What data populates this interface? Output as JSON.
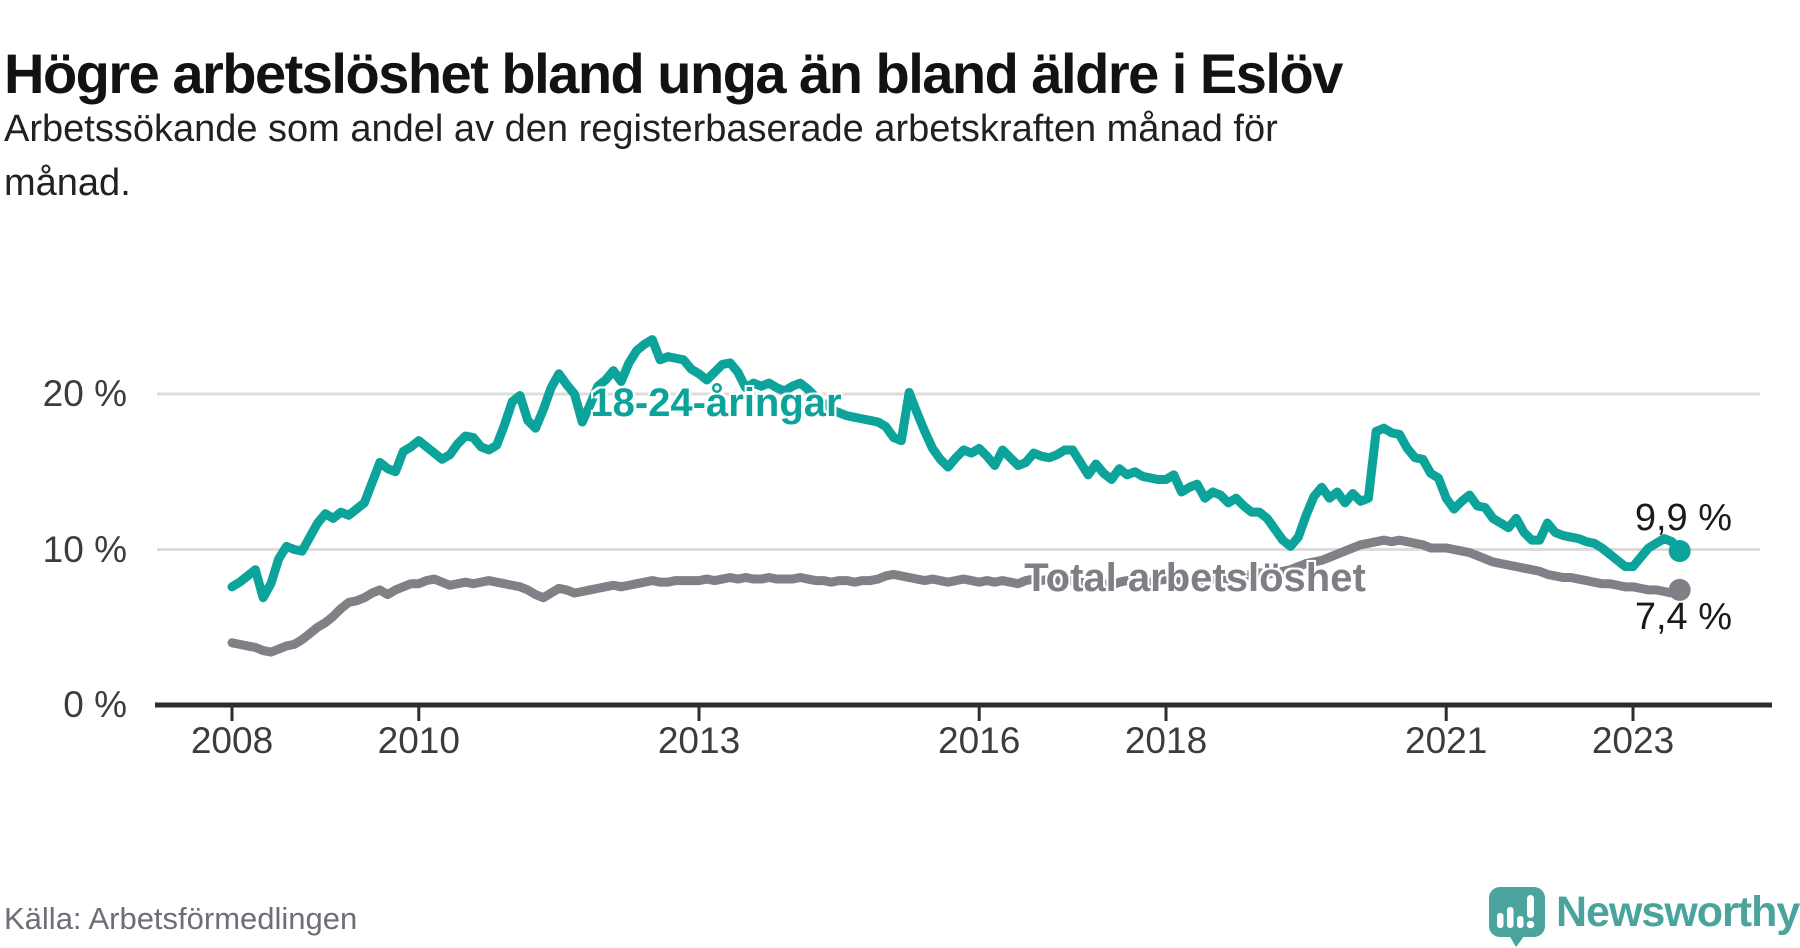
{
  "header": {
    "title": "Högre arbetslöshet bland unga än bland äldre i Eslöv",
    "subtitle_lines": [
      "Arbetssökande som andel av den registerbaserade arbetskraften månad för",
      "månad."
    ]
  },
  "footer": {
    "source": "Källa: Arbetsförmedlingen",
    "brand": "Newsworthy"
  },
  "chart_data": {
    "type": "line",
    "title": "Högre arbetslöshet bland unga än bland äldre i Eslöv",
    "xlabel": "",
    "ylabel": "Arbetssökande som andel av den registerbaserade arbetskraften",
    "x_start": "2008-01",
    "x_end": "2023-07",
    "x_freq": "monthly",
    "ylim": [
      0,
      24
    ],
    "grid": "horizontal",
    "legend_position": "inline-labels",
    "x_ticks": [
      {
        "year": 2008,
        "label": "2008"
      },
      {
        "year": 2010,
        "label": "2010"
      },
      {
        "year": 2013,
        "label": "2013"
      },
      {
        "year": 2016,
        "label": "2016"
      },
      {
        "year": 2018,
        "label": "2018"
      },
      {
        "year": 2021,
        "label": "2021"
      },
      {
        "year": 2023,
        "label": "2023"
      }
    ],
    "y_ticks": [
      {
        "value": 0,
        "label": "0 %"
      },
      {
        "value": 10,
        "label": "10 %"
      },
      {
        "value": 20,
        "label": "20 %"
      }
    ],
    "colors": {
      "grid": "#dcdcdc",
      "axis": "#2d2d2d",
      "youth": "#0ca39a",
      "total": "#808086",
      "logo": "#4aa39c"
    },
    "series": [
      {
        "id": "youth",
        "name": "18-24-åringar",
        "color": "#0ca39a",
        "end_label": "9,9 %",
        "end_value": 9.9,
        "values": [
          7.6,
          7.9,
          8.3,
          8.7,
          6.9,
          7.8,
          9.4,
          10.2,
          10.0,
          9.9,
          10.8,
          11.7,
          12.3,
          12.0,
          12.4,
          12.2,
          12.6,
          13.0,
          14.3,
          15.6,
          15.2,
          15.0,
          16.3,
          16.6,
          17.0,
          16.6,
          16.2,
          15.8,
          16.1,
          16.8,
          17.3,
          17.2,
          16.6,
          16.4,
          16.7,
          18.0,
          19.5,
          19.9,
          18.3,
          17.8,
          19.0,
          20.4,
          21.3,
          20.6,
          20.0,
          18.2,
          19.3,
          20.5,
          20.9,
          21.5,
          20.8,
          22.0,
          22.8,
          23.2,
          23.5,
          22.2,
          22.4,
          22.3,
          22.2,
          21.6,
          21.3,
          20.9,
          21.4,
          21.9,
          22.0,
          21.4,
          20.4,
          20.7,
          20.5,
          20.7,
          20.4,
          20.2,
          20.5,
          20.7,
          20.3,
          19.8,
          19.4,
          19.0,
          18.8,
          18.6,
          18.5,
          18.4,
          18.3,
          18.2,
          17.9,
          17.2,
          17.0,
          20.1,
          18.8,
          17.6,
          16.5,
          15.8,
          15.3,
          15.9,
          16.4,
          16.2,
          16.5,
          16.0,
          15.4,
          16.4,
          15.9,
          15.4,
          15.6,
          16.2,
          16.0,
          15.9,
          16.1,
          16.4,
          16.4,
          15.6,
          14.8,
          15.5,
          14.9,
          14.5,
          15.2,
          14.8,
          15.0,
          14.7,
          14.6,
          14.5,
          14.5,
          14.8,
          13.7,
          14.0,
          14.2,
          13.3,
          13.7,
          13.5,
          13.0,
          13.3,
          12.8,
          12.4,
          12.4,
          12.0,
          11.3,
          10.6,
          10.2,
          10.8,
          12.2,
          13.4,
          14.0,
          13.3,
          13.7,
          13.0,
          13.6,
          13.1,
          13.3,
          17.6,
          17.8,
          17.5,
          17.4,
          16.5,
          15.9,
          15.8,
          14.9,
          14.6,
          13.3,
          12.6,
          13.1,
          13.5,
          12.8,
          12.7,
          12.0,
          11.7,
          11.4,
          12.0,
          11.1,
          10.6,
          10.6,
          11.7,
          11.1,
          10.9,
          10.8,
          10.7,
          10.5,
          10.4,
          10.1,
          9.7,
          9.3,
          8.9,
          8.9,
          9.5,
          10.1,
          10.4,
          10.7,
          10.5,
          9.9
        ]
      },
      {
        "id": "total",
        "name": "Total arbetslöshet",
        "color": "#808086",
        "end_label": "7,4 %",
        "end_value": 7.4,
        "values": [
          4.0,
          3.9,
          3.8,
          3.7,
          3.5,
          3.4,
          3.6,
          3.8,
          3.9,
          4.2,
          4.6,
          5.0,
          5.3,
          5.7,
          6.2,
          6.6,
          6.7,
          6.9,
          7.2,
          7.4,
          7.1,
          7.4,
          7.6,
          7.8,
          7.8,
          8.0,
          8.1,
          7.9,
          7.7,
          7.8,
          7.9,
          7.8,
          7.9,
          8.0,
          7.9,
          7.8,
          7.7,
          7.6,
          7.4,
          7.1,
          6.9,
          7.2,
          7.5,
          7.4,
          7.2,
          7.3,
          7.4,
          7.5,
          7.6,
          7.7,
          7.6,
          7.7,
          7.8,
          7.9,
          8.0,
          7.9,
          7.9,
          8.0,
          8.0,
          8.0,
          8.0,
          8.1,
          8.0,
          8.1,
          8.2,
          8.1,
          8.2,
          8.1,
          8.1,
          8.2,
          8.1,
          8.1,
          8.1,
          8.2,
          8.1,
          8.0,
          8.0,
          7.9,
          8.0,
          8.0,
          7.9,
          8.0,
          8.0,
          8.1,
          8.3,
          8.4,
          8.3,
          8.2,
          8.1,
          8.0,
          8.1,
          8.0,
          7.9,
          8.0,
          8.1,
          8.0,
          7.9,
          8.0,
          7.9,
          8.0,
          7.9,
          7.8,
          8.0,
          8.1,
          8.0,
          8.1,
          8.0,
          8.0,
          8.0,
          7.9,
          7.8,
          7.9,
          7.8,
          7.7,
          7.9,
          8.0,
          7.9,
          7.8,
          7.9,
          8.0,
          8.1,
          8.0,
          7.9,
          8.0,
          8.1,
          8.0,
          8.1,
          8.2,
          8.1,
          8.2,
          8.3,
          8.4,
          8.5,
          8.4,
          8.5,
          8.6,
          8.7,
          8.9,
          9.1,
          9.2,
          9.3,
          9.5,
          9.7,
          9.9,
          10.1,
          10.3,
          10.4,
          10.5,
          10.6,
          10.5,
          10.6,
          10.5,
          10.4,
          10.3,
          10.1,
          10.1,
          10.1,
          10.0,
          9.9,
          9.8,
          9.6,
          9.4,
          9.2,
          9.1,
          9.0,
          8.9,
          8.8,
          8.7,
          8.6,
          8.4,
          8.3,
          8.2,
          8.2,
          8.1,
          8.0,
          7.9,
          7.8,
          7.8,
          7.7,
          7.6,
          7.6,
          7.5,
          7.4,
          7.4,
          7.3,
          7.2,
          7.4
        ]
      }
    ]
  }
}
